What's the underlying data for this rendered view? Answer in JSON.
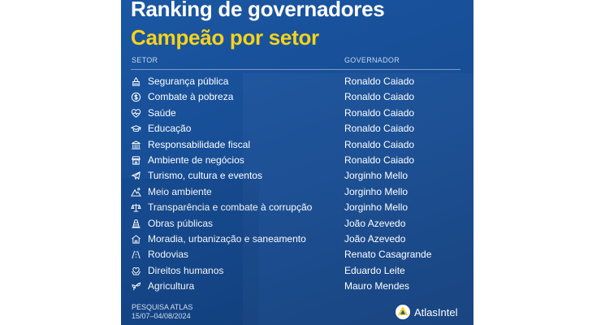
{
  "title_line1": "Ranking de governadores",
  "title_line2": "Campeão por setor",
  "headers": {
    "setor": "SETOR",
    "governador": "GOVERNADOR"
  },
  "rows": [
    {
      "setor": "Segurança pública",
      "governador": "Ronaldo Caiado",
      "icon": "security-icon"
    },
    {
      "setor": "Combate à pobreza",
      "governador": "Ronaldo Caiado",
      "icon": "dollar-icon"
    },
    {
      "setor": "Saúde",
      "governador": "Ronaldo Caiado",
      "icon": "heart-pulse-icon"
    },
    {
      "setor": "Educação",
      "governador": "Ronaldo Caiado",
      "icon": "graduation-cap-icon"
    },
    {
      "setor": "Responsabilidade fiscal",
      "governador": "Ronaldo Caiado",
      "icon": "bank-icon"
    },
    {
      "setor": "Ambiente de negócios",
      "governador": "Ronaldo Caiado",
      "icon": "store-icon"
    },
    {
      "setor": "Turismo, cultura e eventos",
      "governador": "Jorginho Mello",
      "icon": "plane-icon"
    },
    {
      "setor": "Meio ambiente",
      "governador": "Jorginho Mello",
      "icon": "mountain-icon"
    },
    {
      "setor": "Transparência e combate à corrupção",
      "governador": "Jorginho Mello",
      "icon": "balance-icon"
    },
    {
      "setor": "Obras públicas",
      "governador": "João Azevedo",
      "icon": "construction-cone-icon"
    },
    {
      "setor": "Moradia, urbanização e saneamento",
      "governador": "João Azevedo",
      "icon": "house-icon"
    },
    {
      "setor": "Rodovias",
      "governador": "Renato Casagrande",
      "icon": "road-icon"
    },
    {
      "setor": "Direitos humanos",
      "governador": "Eduardo Leite",
      "icon": "heart-hands-icon"
    },
    {
      "setor": "Agricultura",
      "governador": "Mauro Mendes",
      "icon": "sprout-icon"
    }
  ],
  "footer": {
    "line1": "PESQUISA ATLAS",
    "line2": "15/07–04/08/2024"
  },
  "logo_text": "AtlasIntel",
  "colors": {
    "background": "#1b57a3",
    "accent": "#f6d21c",
    "text": "#ffffff"
  }
}
